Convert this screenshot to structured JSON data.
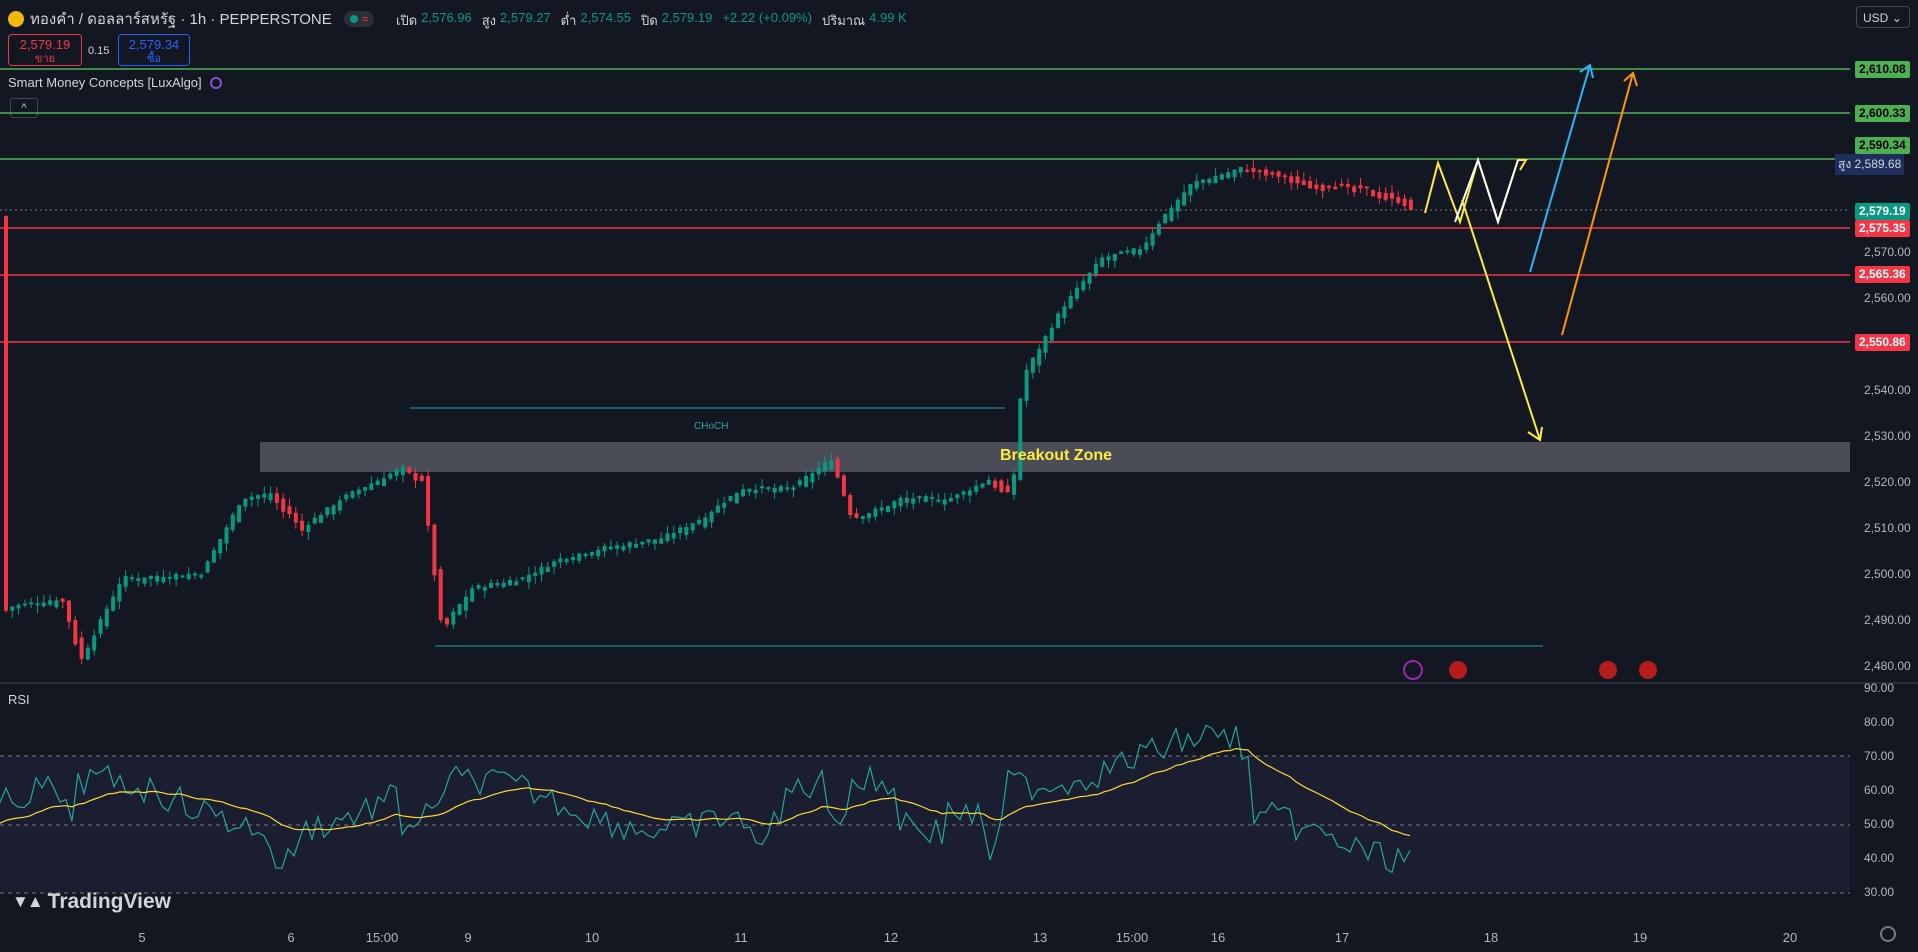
{
  "header": {
    "symbol": "ทองคำ / ดอลลาร์สหรัฐ · 1h · PEPPERSTONE",
    "status_icon": "market-open-dot",
    "ohlc": {
      "open_label": "เปิด",
      "open": "2,576.96",
      "high_label": "สูง",
      "high": "2,579.27",
      "low_label": "ต่ำ",
      "low": "2,574.55",
      "close_label": "ปิด",
      "close": "2,579.19",
      "change": "+2.22 (+0.09%)",
      "volume_label": "ปริมาณ",
      "volume": "4.99 K"
    },
    "currency": "USD"
  },
  "trade": {
    "sell_price": "2,579.19",
    "sell_label": "ขาย",
    "spread": "0.15",
    "buy_price": "2,579.34",
    "buy_label": "ซื้อ"
  },
  "indicator": {
    "name": "Smart Money Concepts [LuxAlgo]",
    "collapse_glyph": "^"
  },
  "chart_annotations": {
    "breakout_zone": "Breakout Zone",
    "choch_top": "CHoCH"
  },
  "price_axis": {
    "ticks": [
      "2,570.00",
      "2,560.00",
      "2,540.00",
      "2,530.00",
      "2,520.00",
      "2,510.00",
      "2,500.00",
      "2,490.00",
      "2,480.00"
    ],
    "levels": [
      {
        "value": "2,610.08",
        "kind": "green"
      },
      {
        "value": "2,600.33",
        "kind": "green"
      },
      {
        "value": "2,590.34",
        "kind": "green"
      },
      {
        "value": "2,579.19",
        "kind": "teal"
      },
      {
        "value": "2,575.35",
        "kind": "red"
      },
      {
        "value": "2,565.36",
        "kind": "red"
      },
      {
        "value": "2,550.86",
        "kind": "red"
      }
    ],
    "high_label": "สูง",
    "high_value": "2,589.68"
  },
  "rsi": {
    "label": "RSI",
    "ticks": [
      "90.00",
      "80.00",
      "70.00",
      "60.00",
      "50.00",
      "40.00",
      "30.00"
    ]
  },
  "time_axis": [
    "5",
    "6",
    "15:00",
    "9",
    "10",
    "11",
    "12",
    "13",
    "15:00",
    "16",
    "17",
    "18",
    "19",
    "20"
  ],
  "branding": "TradingView",
  "colors": {
    "background": "#131722",
    "up": "#089981",
    "down": "#f23645",
    "support_line": "#f23645",
    "resistance_line": "#4caf50"
  }
}
